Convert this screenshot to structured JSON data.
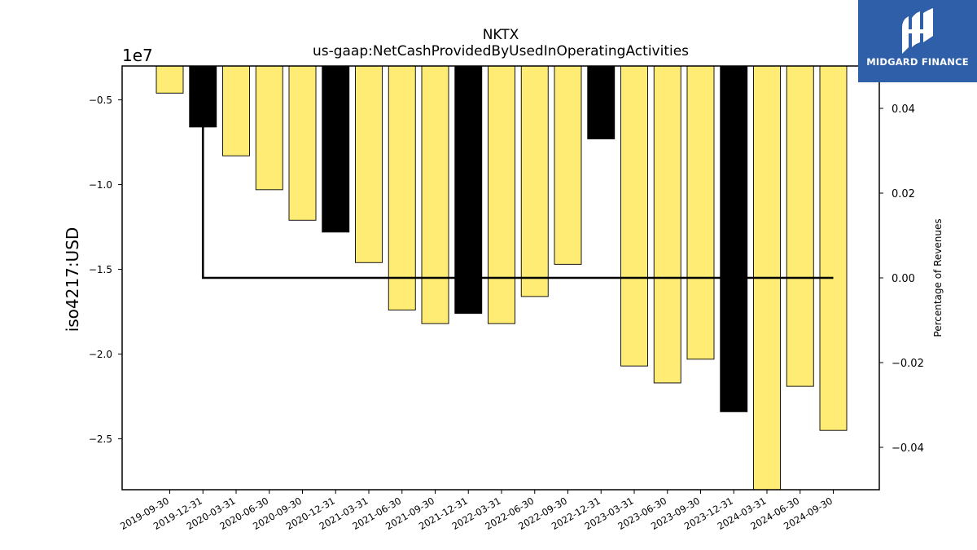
{
  "chart_data": {
    "type": "bar",
    "title_line1": "NKTX",
    "title_line2": "us-gaap:NetCashProvidedByUsedInOperatingActivities",
    "ylabel": "iso4217:USD",
    "y2label": "Percentage of Revenues",
    "offset_text": "1e7",
    "ylim": [
      -2.8,
      -0.3
    ],
    "yticks": [
      -0.5,
      -1.0,
      -1.5,
      -2.0,
      -2.5
    ],
    "ytick_labels": [
      "−0.5",
      "−1.0",
      "−1.5",
      "−2.0",
      "−2.5"
    ],
    "y2lim": [
      -0.05,
      0.05
    ],
    "y2ticks": [
      0.04,
      0.02,
      0.0,
      -0.02,
      -0.04
    ],
    "y2tick_labels": [
      "0.04",
      "0.02",
      "0.00",
      "−0.02",
      "−0.04"
    ],
    "categories": [
      "2019-09-30",
      "2019-12-31",
      "2020-03-31",
      "2020-06-30",
      "2020-09-30",
      "2020-12-31",
      "2021-03-31",
      "2021-06-30",
      "2021-09-30",
      "2021-12-31",
      "2022-03-31",
      "2022-06-30",
      "2022-09-30",
      "2022-12-31",
      "2023-03-31",
      "2023-06-30",
      "2023-09-30",
      "2023-12-31",
      "2024-03-31",
      "2024-06-30",
      "2024-09-30"
    ],
    "values": [
      -0.46,
      -0.66,
      -0.83,
      -1.03,
      -1.21,
      -1.28,
      -1.46,
      -1.74,
      -1.82,
      -1.76,
      -1.82,
      -1.66,
      -1.47,
      -0.73,
      -2.07,
      -2.17,
      -2.03,
      -2.34,
      -2.8,
      -2.19,
      -2.45
    ],
    "bar_colors": [
      "#ffec74",
      "#000000",
      "#ffec74",
      "#ffec74",
      "#ffec74",
      "#000000",
      "#ffec74",
      "#ffec74",
      "#ffec74",
      "#000000",
      "#ffec74",
      "#ffec74",
      "#ffec74",
      "#000000",
      "#ffec74",
      "#ffec74",
      "#ffec74",
      "#000000",
      "#ffec74",
      "#ffec74",
      "#ffec74"
    ],
    "percentage_line": {
      "x_start": "2019-12-31",
      "x_end": "2024-09-30",
      "value": 0.0
    },
    "grid": false
  },
  "branding": {
    "logo_text": "MIDGARD FINANCE",
    "logo_color": "#2e5fa8"
  }
}
